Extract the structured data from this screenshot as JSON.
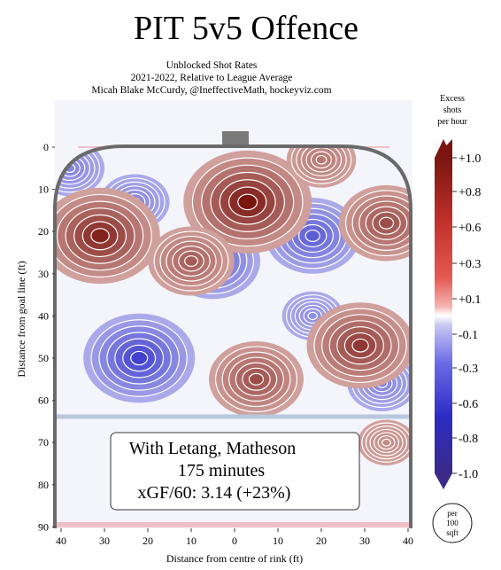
{
  "chart_data": {
    "type": "heatmap",
    "title": "PIT 5v5 Offence",
    "subtitle_lines": [
      "Unblocked Shot Rates",
      "2021-2022, Relative to League Average",
      "Micah Blake McCurdy, @IneffectiveMath, hockeyviz.com"
    ],
    "xlabel": "Distance from centre of rink (ft)",
    "ylabel": "Distance from goal line (ft)",
    "x_ticks": [
      "40",
      "30",
      "20",
      "10",
      "0",
      "10",
      "20",
      "30",
      "40"
    ],
    "y_ticks": [
      "0",
      "10",
      "20",
      "30",
      "40",
      "50",
      "60",
      "70",
      "80",
      "90"
    ],
    "xlim": [
      -42,
      42
    ],
    "ylim": [
      0,
      90
    ],
    "colorbar": {
      "title_lines": [
        "Excess",
        "shots",
        "per hour"
      ],
      "tick_labels": [
        "+1.0",
        "+0.8",
        "+0.6",
        "+0.3",
        "+0.1",
        "-0.1",
        "-0.3",
        "-0.6",
        "-0.8",
        "-1.0"
      ],
      "unit_lines": [
        "per",
        "100",
        "sqft"
      ],
      "positive_color": "#8b1a12",
      "negative_color": "#3a2ea8"
    },
    "info_box": {
      "line1": "With Letang, Matheson",
      "line2": "175 minutes",
      "line3": "xGF/60: 3.14 (+23%)"
    },
    "hotspots": [
      {
        "x": -31,
        "y": 21,
        "value": 0.9
      },
      {
        "x": 3,
        "y": 13,
        "value": 1.0
      },
      {
        "x": 35,
        "y": 18,
        "value": 0.6
      },
      {
        "x": 29,
        "y": 47,
        "value": 0.75
      },
      {
        "x": 5,
        "y": 55,
        "value": 0.6
      },
      {
        "x": 35,
        "y": 70,
        "value": 0.15
      },
      {
        "x": -10,
        "y": 27,
        "value": 0.5
      },
      {
        "x": 20,
        "y": 3,
        "value": 0.3
      }
    ],
    "coldspots": [
      {
        "x": -22,
        "y": 50,
        "value": -0.8
      },
      {
        "x": -5,
        "y": 27,
        "value": -0.6
      },
      {
        "x": 18,
        "y": 21,
        "value": -0.6
      },
      {
        "x": -23,
        "y": 13,
        "value": -0.3
      },
      {
        "x": -38,
        "y": 5,
        "value": -0.3
      },
      {
        "x": 34,
        "y": 56,
        "value": -0.3
      },
      {
        "x": 18,
        "y": 40,
        "value": -0.2
      }
    ]
  }
}
